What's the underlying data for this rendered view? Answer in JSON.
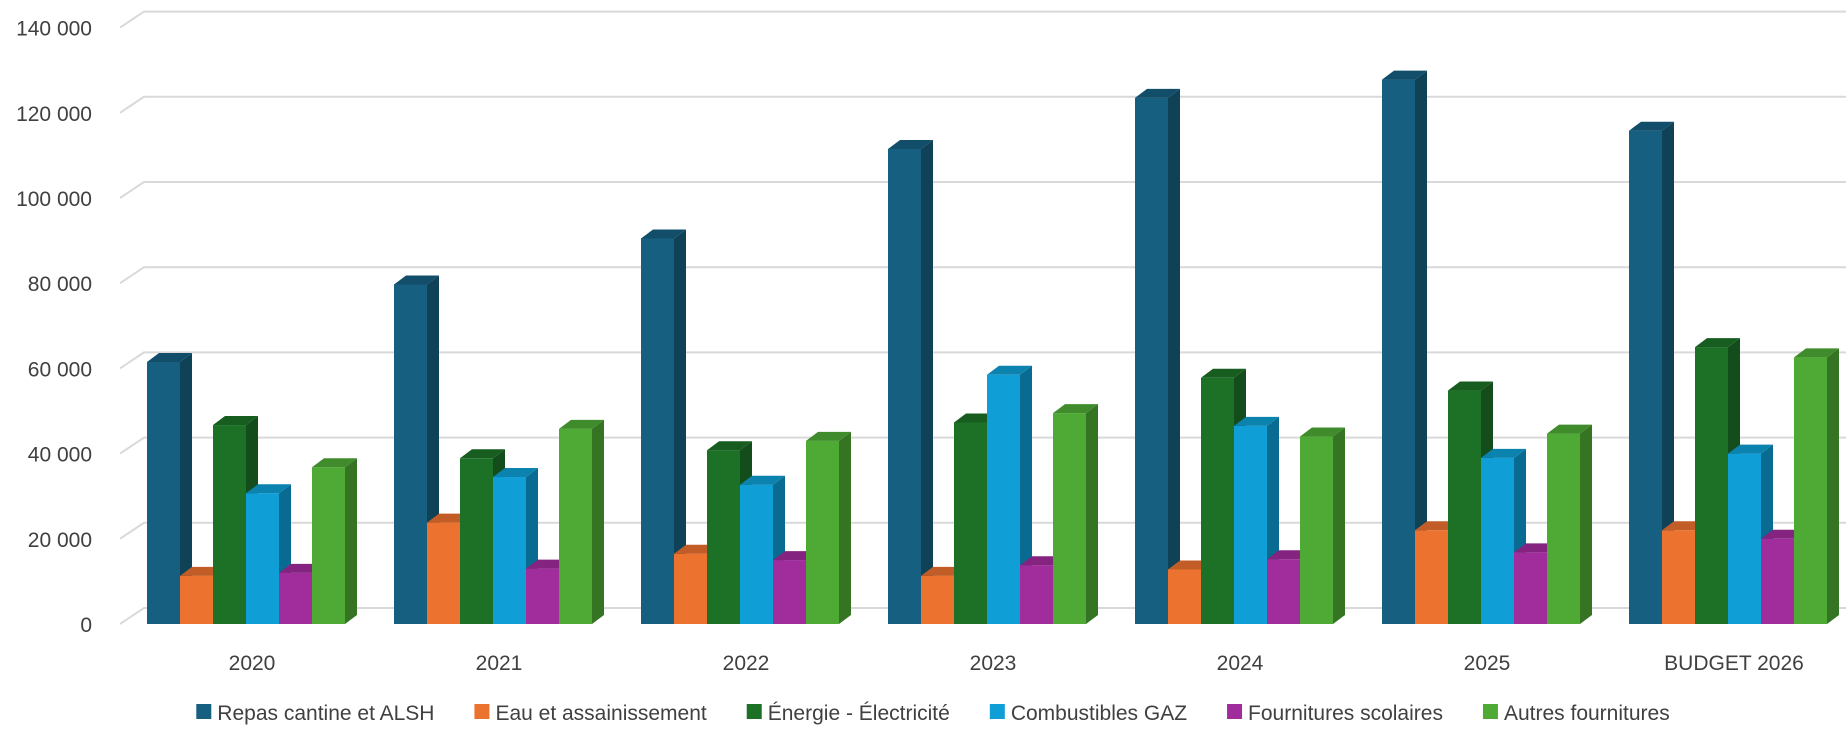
{
  "chart_data": {
    "type": "bar",
    "categories": [
      "2020",
      "2021",
      "2022",
      "2023",
      "2024",
      "2025",
      "BUDGET 2026"
    ],
    "series": [
      {
        "name": "Repas cantine et ALSH",
        "color": "#165f80",
        "values": [
          61500,
          79700,
          90500,
          111500,
          123500,
          127800,
          115800
        ]
      },
      {
        "name": "Eau et assainissement",
        "color": "#ec7230",
        "values": [
          11300,
          23800,
          16500,
          11300,
          12800,
          22000,
          22000
        ]
      },
      {
        "name": "Énergie - Électricité",
        "color": "#1c7127",
        "values": [
          46700,
          38900,
          40800,
          47300,
          57800,
          54800,
          65000
        ]
      },
      {
        "name": "Combustibles GAZ",
        "color": "#0f9ed6",
        "values": [
          30700,
          34500,
          32700,
          58500,
          46500,
          39000,
          40000
        ]
      },
      {
        "name": "Fournitures scolaires",
        "color": "#a12c9c",
        "values": [
          12000,
          13000,
          15000,
          13800,
          15200,
          16800,
          20000
        ]
      },
      {
        "name": "Autres fournitures",
        "color": "#4eaa34",
        "values": [
          36800,
          45800,
          43000,
          49500,
          44000,
          44700,
          62600
        ]
      }
    ],
    "yticks": [
      "0",
      "20 000",
      "40 000",
      "60 000",
      "80 000",
      "100 000",
      "120 000",
      "140 000"
    ],
    "ylim": [
      0,
      140000
    ],
    "title": "",
    "xlabel": "",
    "ylabel": "",
    "grid": true,
    "legend_position": "bottom"
  }
}
